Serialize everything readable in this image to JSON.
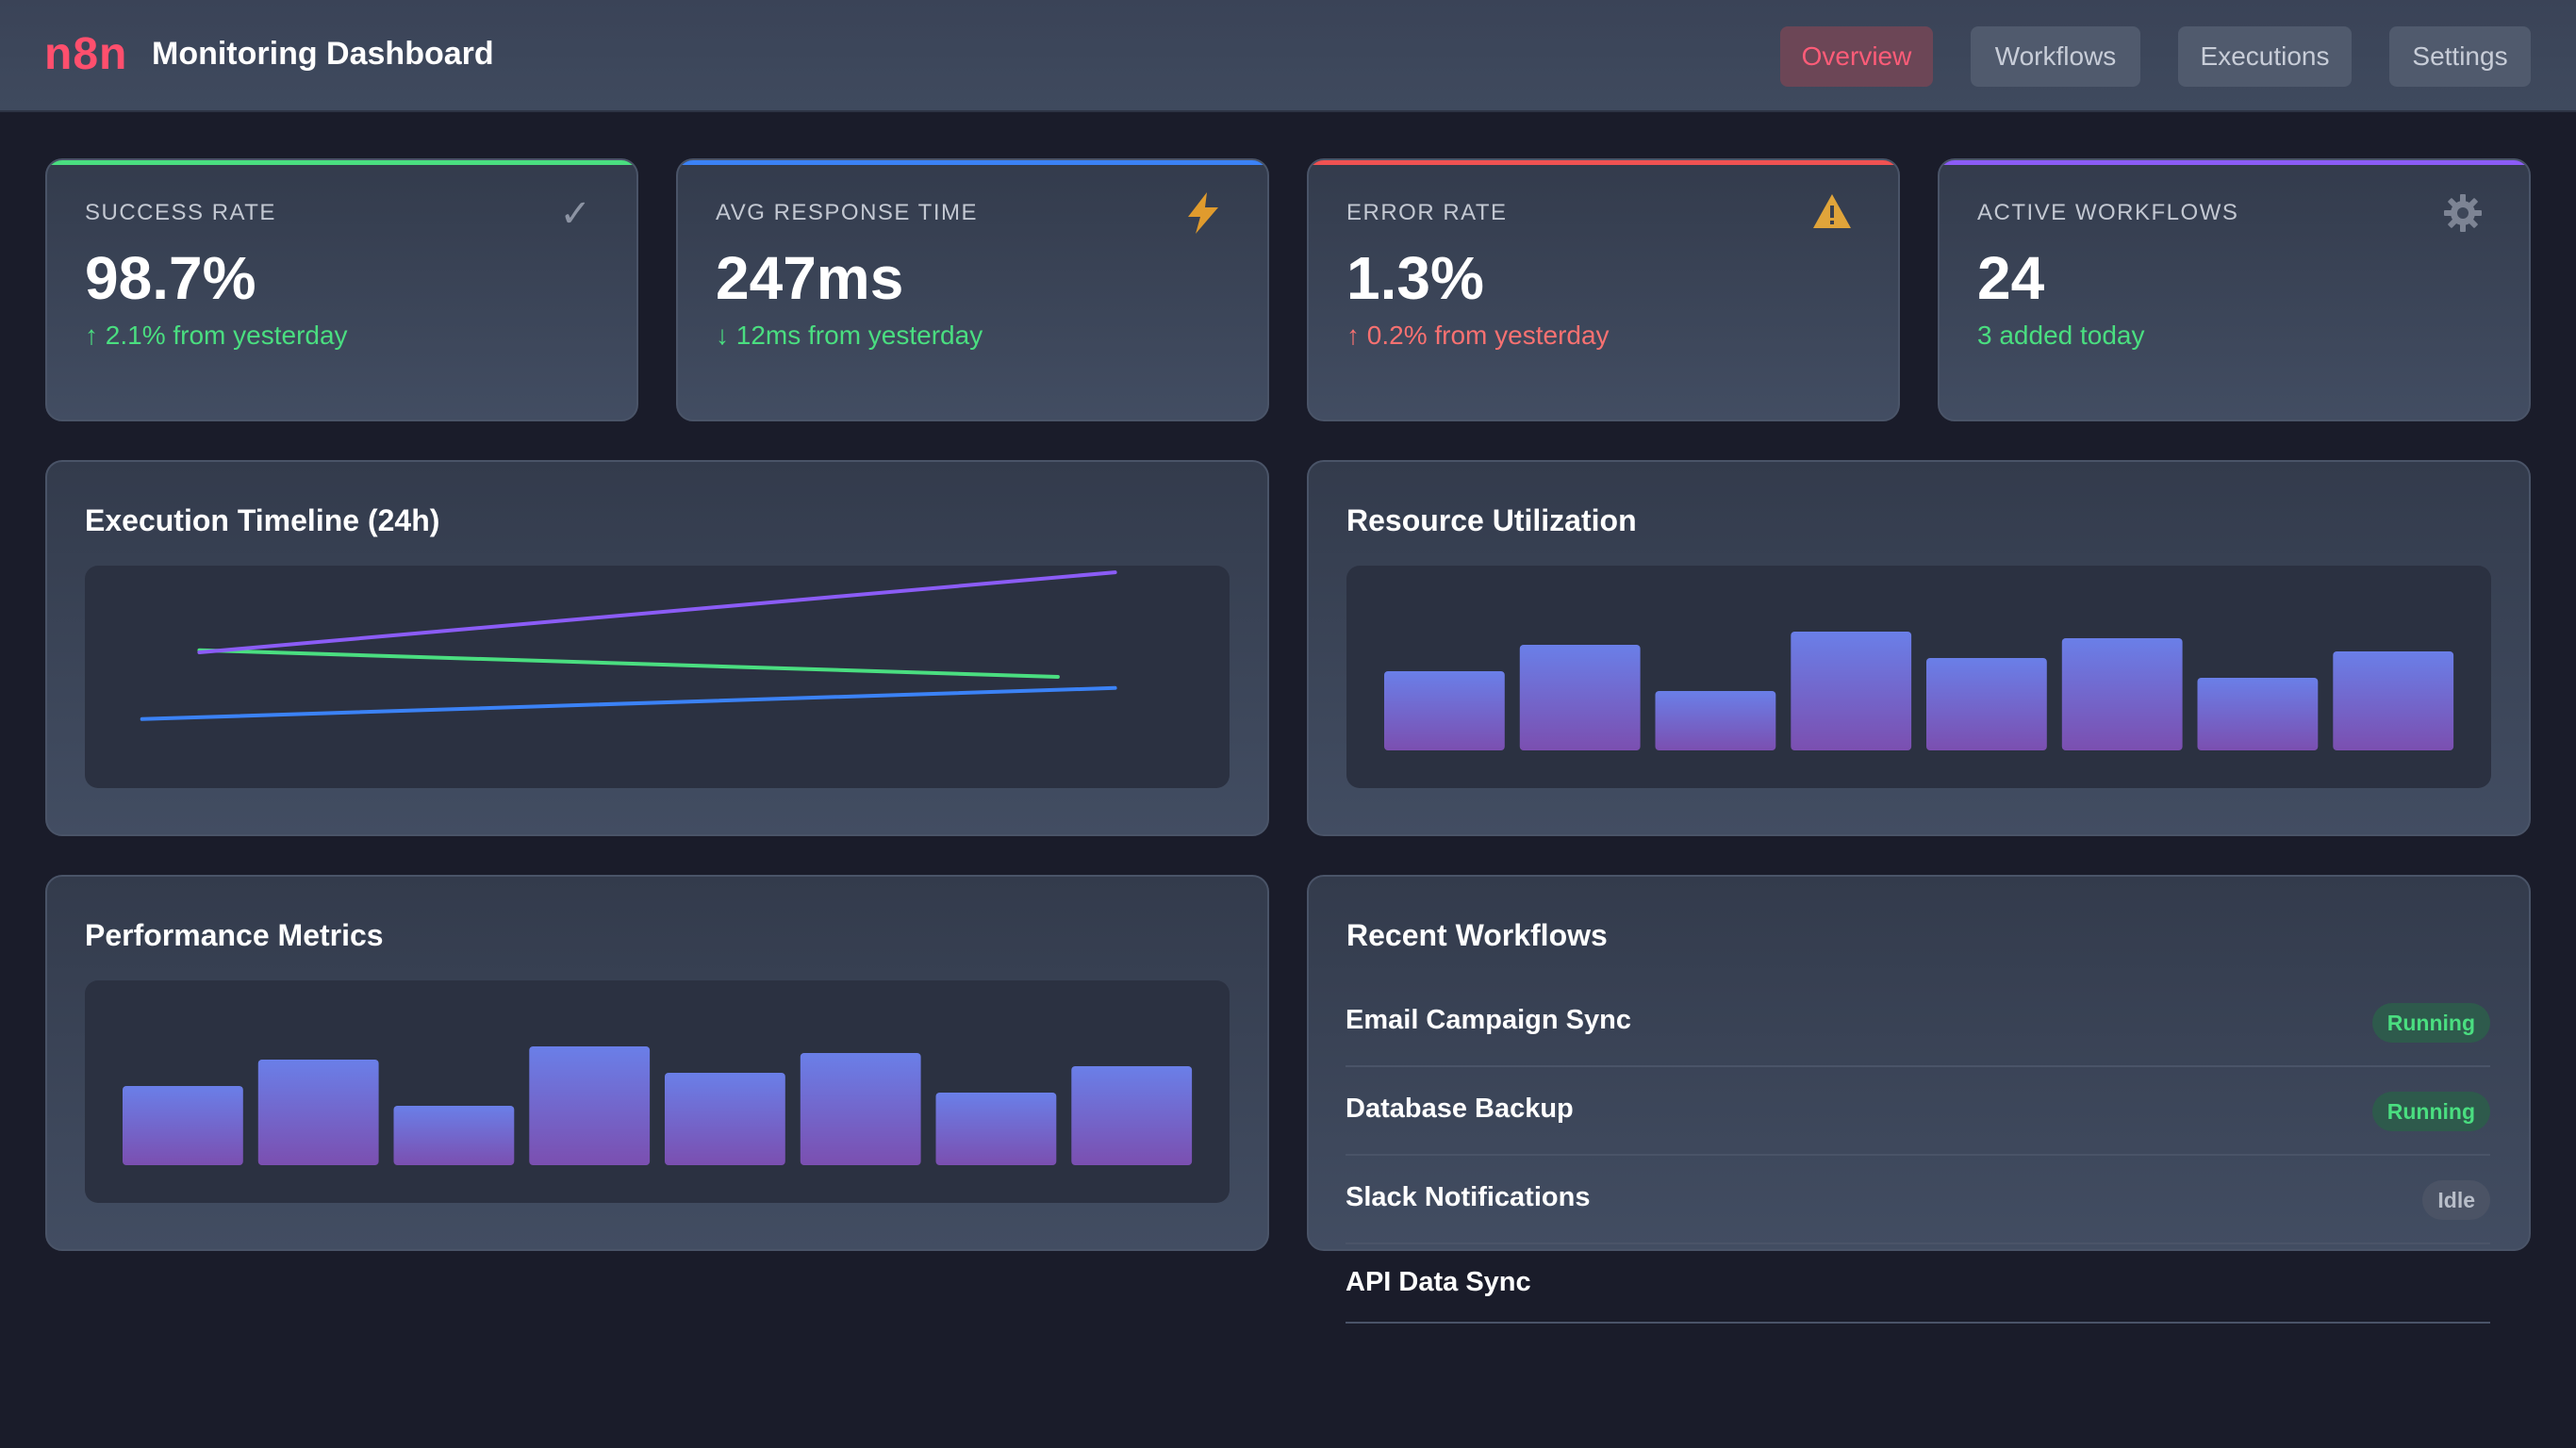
{
  "header": {
    "logo": "n8n",
    "title": "Monitoring Dashboard",
    "nav": [
      {
        "label": "Overview",
        "active": true
      },
      {
        "label": "Workflows",
        "active": false
      },
      {
        "label": "Executions",
        "active": false
      },
      {
        "label": "Settings",
        "active": false
      }
    ]
  },
  "stats": [
    {
      "label": "SUCCESS RATE",
      "value": "98.7%",
      "change": "↑ 2.1% from yesterday",
      "trend": "good",
      "icon": "check-icon",
      "accent": "#4ade80"
    },
    {
      "label": "AVG RESPONSE TIME",
      "value": "247ms",
      "change": "↓ 12ms from yesterday",
      "trend": "good",
      "icon": "lightning-icon",
      "accent": "#3b82f6"
    },
    {
      "label": "ERROR RATE",
      "value": "1.3%",
      "change": "↑ 0.2% from yesterday",
      "trend": "bad",
      "icon": "warning-icon",
      "accent": "#f05252"
    },
    {
      "label": "ACTIVE WORKFLOWS",
      "value": "24",
      "change": "3 added today",
      "trend": "good",
      "icon": "gear-icon",
      "accent": "#8b5cf6"
    }
  ],
  "panels": {
    "timeline_title": "Execution Timeline (24h)",
    "resource_title": "Resource Utilization",
    "performance_title": "Performance Metrics",
    "recent_title": "Recent Workflows"
  },
  "chart_data": [
    {
      "type": "line",
      "series": [
        {
          "values": [
            [
              0.05,
              0.69
            ],
            [
              0.9,
              0.55
            ]
          ],
          "color": "#3b82f6"
        },
        {
          "values": [
            [
              0.1,
              0.38
            ],
            [
              0.85,
              0.5
            ]
          ],
          "color": "#4ade80"
        },
        {
          "values": [
            [
              0.1,
              0.39
            ],
            [
              0.9,
              0.03
            ]
          ],
          "color": "#8b5cf6"
        }
      ]
    },
    {
      "type": "bar",
      "values": [
        60,
        80,
        45,
        90,
        70,
        85,
        55,
        75
      ],
      "ylim": [
        0,
        100
      ]
    },
    {
      "type": "bar",
      "values": [
        60,
        80,
        45,
        90,
        70,
        85,
        55,
        75
      ],
      "ylim": [
        0,
        100
      ]
    }
  ],
  "workflows": [
    {
      "name": "Email Campaign Sync",
      "status": "Running"
    },
    {
      "name": "Database Backup",
      "status": "Running"
    },
    {
      "name": "Slack Notifications",
      "status": "Idle"
    },
    {
      "name": "API Data Sync",
      "status": ""
    }
  ],
  "colors": {
    "brand": "#ff4f6d",
    "bar_top": "#6a7fe8",
    "bar_bottom": "#7b4fb0"
  }
}
